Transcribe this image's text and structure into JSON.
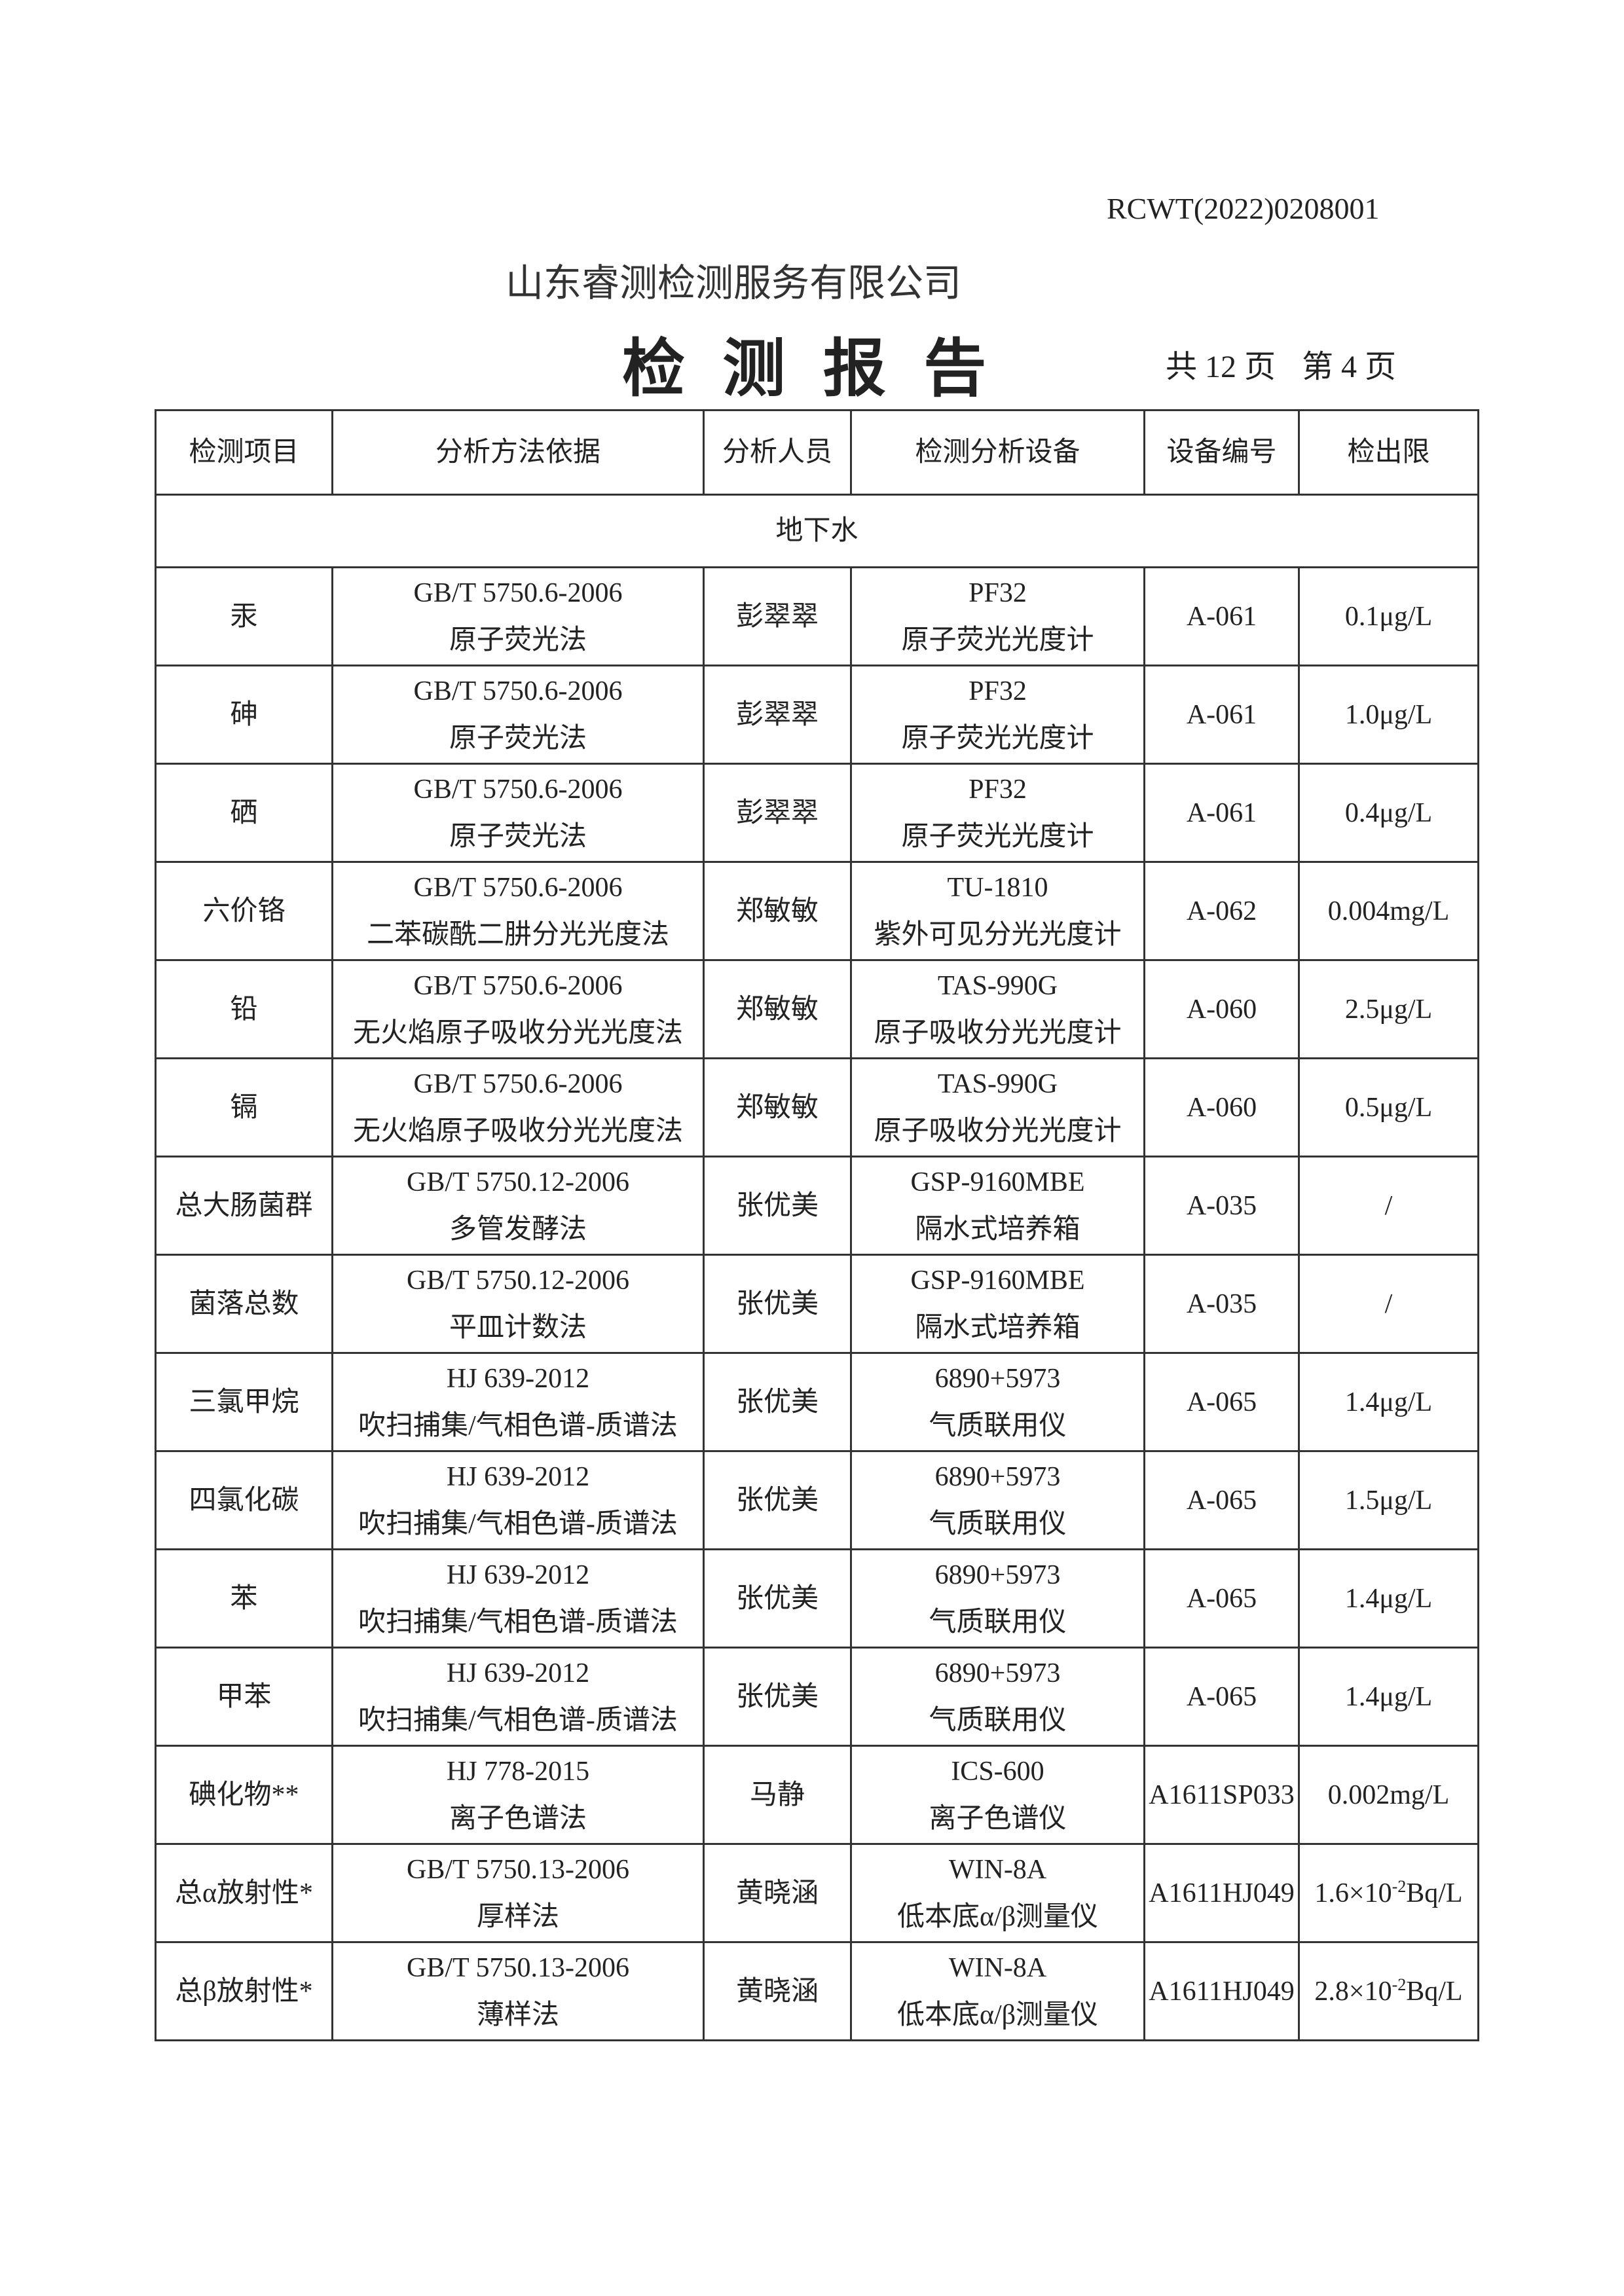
{
  "report_no": "RCWT(2022)0208001",
  "company": "山东睿测检测服务有限公司",
  "title": "检 测 报 告",
  "pages": {
    "total": "共 12 页",
    "current": "第 4 页"
  },
  "table": {
    "headers": [
      "检测项目",
      "分析方法依据",
      "分析人员",
      "检测分析设备",
      "设备编号",
      "检出限"
    ],
    "section": "地下水",
    "rows": [
      {
        "item": "汞",
        "std": "GB/T 5750.6-2006",
        "method": "原子荧光法",
        "analyst": "彭翠翠",
        "model": "PF32",
        "device": "原子荧光光度计",
        "id": "A-061",
        "limit": "0.1μg/L"
      },
      {
        "item": "砷",
        "std": "GB/T 5750.6-2006",
        "method": "原子荧光法",
        "analyst": "彭翠翠",
        "model": "PF32",
        "device": "原子荧光光度计",
        "id": "A-061",
        "limit": "1.0μg/L"
      },
      {
        "item": "硒",
        "std": "GB/T 5750.6-2006",
        "method": "原子荧光法",
        "analyst": "彭翠翠",
        "model": "PF32",
        "device": "原子荧光光度计",
        "id": "A-061",
        "limit": "0.4μg/L"
      },
      {
        "item": "六价铬",
        "std": "GB/T 5750.6-2006",
        "method": "二苯碳酰二肼分光光度法",
        "analyst": "郑敏敏",
        "model": "TU-1810",
        "device": "紫外可见分光光度计",
        "id": "A-062",
        "limit": "0.004mg/L"
      },
      {
        "item": "铅",
        "std": "GB/T 5750.6-2006",
        "method": "无火焰原子吸收分光光度法",
        "analyst": "郑敏敏",
        "model": "TAS-990G",
        "device": "原子吸收分光光度计",
        "id": "A-060",
        "limit": "2.5μg/L"
      },
      {
        "item": "镉",
        "std": "GB/T 5750.6-2006",
        "method": "无火焰原子吸收分光光度法",
        "analyst": "郑敏敏",
        "model": "TAS-990G",
        "device": "原子吸收分光光度计",
        "id": "A-060",
        "limit": "0.5μg/L"
      },
      {
        "item": "总大肠菌群",
        "std": "GB/T 5750.12-2006",
        "method": "多管发酵法",
        "analyst": "张优美",
        "model": "GSP-9160MBE",
        "device": "隔水式培养箱",
        "id": "A-035",
        "limit": "/"
      },
      {
        "item": "菌落总数",
        "std": "GB/T 5750.12-2006",
        "method": "平皿计数法",
        "analyst": "张优美",
        "model": "GSP-9160MBE",
        "device": "隔水式培养箱",
        "id": "A-035",
        "limit": "/"
      },
      {
        "item": "三氯甲烷",
        "std": "HJ 639-2012",
        "method": "吹扫捕集/气相色谱-质谱法",
        "analyst": "张优美",
        "model": "6890+5973",
        "device": "气质联用仪",
        "id": "A-065",
        "limit": "1.4μg/L"
      },
      {
        "item": "四氯化碳",
        "std": "HJ 639-2012",
        "method": "吹扫捕集/气相色谱-质谱法",
        "analyst": "张优美",
        "model": "6890+5973",
        "device": "气质联用仪",
        "id": "A-065",
        "limit": "1.5μg/L"
      },
      {
        "item": "苯",
        "std": "HJ 639-2012",
        "method": "吹扫捕集/气相色谱-质谱法",
        "analyst": "张优美",
        "model": "6890+5973",
        "device": "气质联用仪",
        "id": "A-065",
        "limit": "1.4μg/L"
      },
      {
        "item": "甲苯",
        "std": "HJ 639-2012",
        "method": "吹扫捕集/气相色谱-质谱法",
        "analyst": "张优美",
        "model": "6890+5973",
        "device": "气质联用仪",
        "id": "A-065",
        "limit": "1.4μg/L"
      },
      {
        "item": "碘化物**",
        "std": "HJ 778-2015",
        "method": "离子色谱法",
        "analyst": "马静",
        "model": "ICS-600",
        "device": "离子色谱仪",
        "id": "A1611SP033",
        "limit": "0.002mg/L"
      },
      {
        "item": "总α放射性*",
        "std": "GB/T 5750.13-2006",
        "method": "厚样法",
        "analyst": "黄晓涵",
        "model": "WIN-8A",
        "device": "低本底α/β测量仪",
        "id": "A1611HJ049",
        "limit_base": "1.6×10",
        "limit_exp": "-2",
        "limit_unit": "Bq/L"
      },
      {
        "item": "总β放射性*",
        "std": "GB/T 5750.13-2006",
        "method": "薄样法",
        "analyst": "黄晓涵",
        "model": "WIN-8A",
        "device": "低本底α/β测量仪",
        "id": "A1611HJ049",
        "limit_base": "2.8×10",
        "limit_exp": "-2",
        "limit_unit": "Bq/L"
      }
    ]
  }
}
